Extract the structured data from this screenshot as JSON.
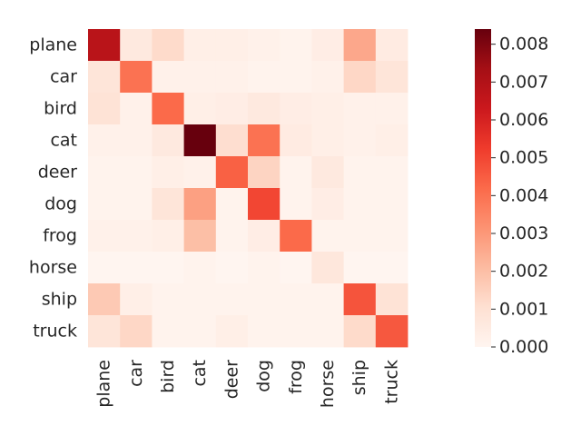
{
  "chart_data": {
    "type": "heatmap",
    "row_labels": [
      "plane",
      "car",
      "bird",
      "cat",
      "deer",
      "dog",
      "frog",
      "horse",
      "ship",
      "truck"
    ],
    "col_labels": [
      "plane",
      "car",
      "bird",
      "cat",
      "deer",
      "dog",
      "frog",
      "horse",
      "ship",
      "truck"
    ],
    "values": [
      [
        0.0068,
        0.0006,
        0.0012,
        0.0003,
        0.0003,
        0.0002,
        0.0001,
        0.0004,
        0.0026,
        0.0005
      ],
      [
        0.0008,
        0.004,
        0.0002,
        0.0002,
        0.0002,
        0.0001,
        0.0001,
        0.0002,
        0.0013,
        0.0008
      ],
      [
        0.0009,
        0.0002,
        0.0042,
        0.0003,
        0.0004,
        0.0006,
        0.0004,
        0.0003,
        0.0002,
        0.0002
      ],
      [
        0.0002,
        0.0002,
        0.0006,
        0.0084,
        0.0011,
        0.004,
        0.0005,
        0.0003,
        0.0002,
        0.0003
      ],
      [
        0.0001,
        0.0001,
        0.0003,
        0.0002,
        0.0044,
        0.0014,
        0.0001,
        0.0006,
        0.0001,
        0.0001
      ],
      [
        0.0001,
        0.0001,
        0.0008,
        0.0028,
        0.0001,
        0.005,
        0.0001,
        0.0004,
        0.0001,
        0.0001
      ],
      [
        0.0002,
        0.0002,
        0.0003,
        0.002,
        0.0001,
        0.0004,
        0.0042,
        0.0001,
        0.0001,
        0.0001
      ],
      [
        0.0,
        0.0,
        0.0,
        0.0001,
        0.0,
        0.0001,
        0.0,
        0.0007,
        0.0,
        0.0
      ],
      [
        0.0017,
        0.0003,
        0.0001,
        0.0001,
        0.0001,
        0.0001,
        0.0001,
        0.0001,
        0.0047,
        0.0009
      ],
      [
        0.0008,
        0.0013,
        0.0001,
        0.0001,
        0.0003,
        0.0001,
        0.0001,
        0.0001,
        0.0012,
        0.0046
      ]
    ],
    "colormap": "Reds",
    "vmin": 0.0,
    "vmax": 0.0084,
    "colorbar_ticks": [
      "0.000",
      "0.001",
      "0.002",
      "0.003",
      "0.004",
      "0.005",
      "0.006",
      "0.007",
      "0.008"
    ],
    "colorbar_tick_values": [
      0.0,
      0.001,
      0.002,
      0.003,
      0.004,
      0.005,
      0.006,
      0.007,
      0.008
    ],
    "title": "",
    "xlabel": "",
    "ylabel": ""
  }
}
